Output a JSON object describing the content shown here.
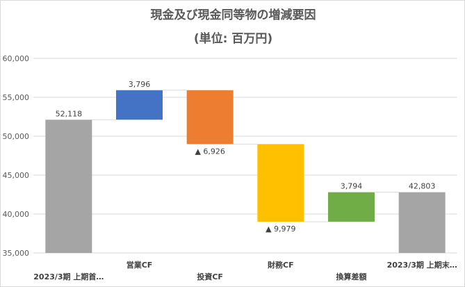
{
  "chart_data": {
    "type": "bar",
    "subtype": "waterfall",
    "title": "現金及び現金同等物の増減要因",
    "subtitle": "(単位: 百万円)",
    "xlabel": "",
    "ylabel": "",
    "ylim": [
      35000,
      60000
    ],
    "yticks": [
      35000,
      40000,
      45000,
      50000,
      55000,
      60000
    ],
    "ytick_labels": [
      "35,000",
      "40,000",
      "45,000",
      "50,000",
      "55,000",
      "60,000"
    ],
    "grid": true,
    "legend": "none",
    "categories": [
      "2023/3期 上期首…",
      "営業CF",
      "投資CF",
      "財務CF",
      "換算差額",
      "2023/3期 上期末…"
    ],
    "steps": [
      {
        "kind": "total",
        "value": 52118,
        "label": "52,118",
        "color": "#a5a5a5"
      },
      {
        "kind": "delta",
        "value": 3796,
        "label": "3,796",
        "color": "#4472c4"
      },
      {
        "kind": "delta",
        "value": -6926,
        "label": "▲ 6,926",
        "color": "#ed7d31"
      },
      {
        "kind": "delta",
        "value": -9979,
        "label": "▲ 9,979",
        "color": "#ffc000"
      },
      {
        "kind": "delta",
        "value": 3794,
        "label": "3,794",
        "color": "#70ad47"
      },
      {
        "kind": "total",
        "value": 42803,
        "label": "42,803",
        "color": "#a5a5a5"
      }
    ]
  }
}
